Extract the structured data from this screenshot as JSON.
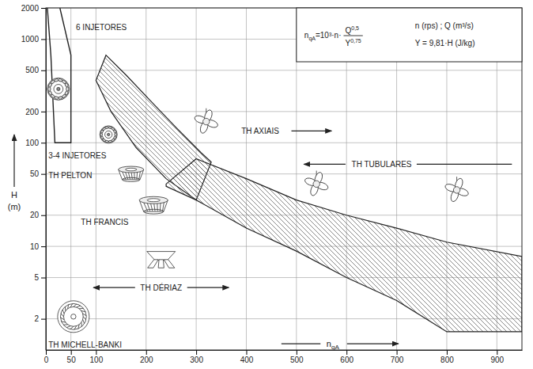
{
  "chart_data": {
    "type": "area",
    "xlabel": "nqA",
    "ylabel": "H (m)",
    "xlim": [
      0,
      950
    ],
    "xticks": [
      0,
      50,
      100,
      200,
      300,
      400,
      500,
      600,
      700,
      800,
      900
    ],
    "ylim": [
      1,
      2000
    ],
    "yticks": [
      2,
      5,
      10,
      20,
      50,
      100,
      200,
      500,
      1000,
      2000
    ],
    "log": "y",
    "grid": true,
    "series": [
      {
        "name": "TH PELTON",
        "type": "line",
        "color": "#222222",
        "x": [
          3,
          10,
          18,
          50,
          50,
          28
        ],
        "values": [
          2000,
          700,
          100,
          100,
          700,
          2000
        ]
      },
      {
        "name": "TH FRANCIS",
        "type": "area",
        "color": "#222222",
        "x": [
          120,
          160,
          210,
          260,
          310,
          330,
          300,
          240,
          180,
          130,
          100
        ],
        "values": [
          700,
          450,
          250,
          140,
          80,
          65,
          28,
          45,
          90,
          200,
          400
        ]
      },
      {
        "name": "TH AXIAIS",
        "type": "area",
        "color": "#222222",
        "x": [
          240,
          300,
          400,
          500,
          600,
          700,
          800,
          950,
          950,
          800,
          700,
          600,
          500,
          400,
          300,
          240
        ],
        "values": [
          40,
          70,
          45,
          28,
          20,
          15,
          11,
          8,
          1.5,
          1.5,
          3,
          5,
          9,
          15,
          28,
          38
        ]
      }
    ],
    "annotations": [
      "6 INJETORES",
      "3-4 INJETORES",
      "TH TUBULARES",
      "TH DÉRIAZ",
      "TH MICHELL-BANKI"
    ],
    "formula": {
      "lhs": "nqA",
      "rhs": "=10³·n·",
      "numerator": "Q",
      "numerator_exp": "0,5",
      "denominator": "Y",
      "denominator_exp": "0,75"
    },
    "formula_units": [
      "n (rps) ; Q (m³/s)",
      "Y = 9,81·H (J/kg)"
    ]
  }
}
